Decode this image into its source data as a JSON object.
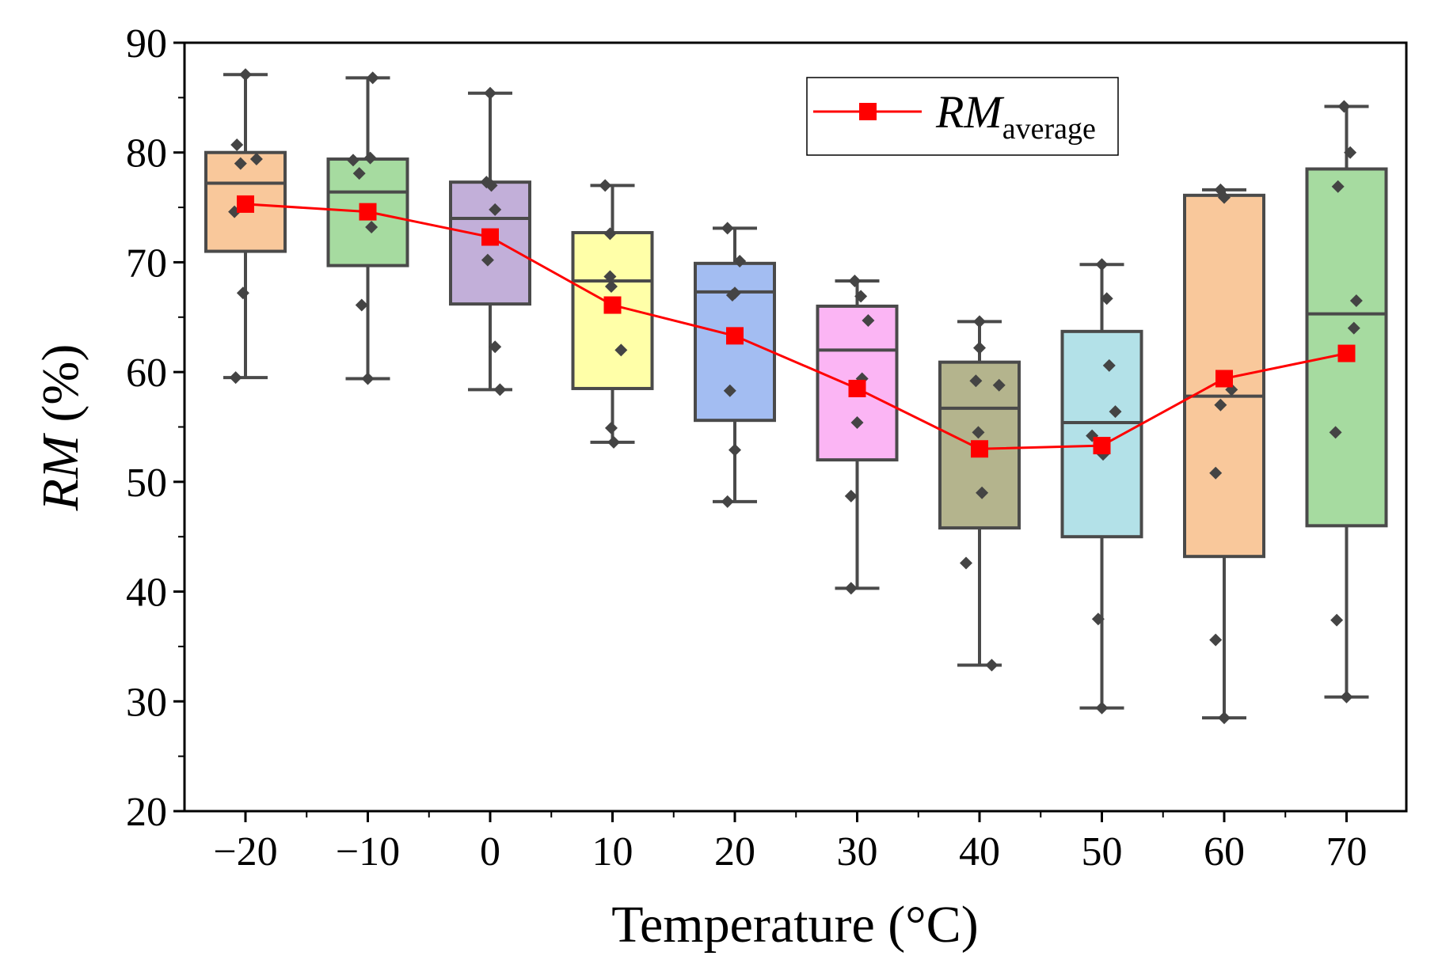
{
  "chart_data": {
    "type": "box",
    "xlabel": "Temperature (°C)",
    "ylabel_italic": "RM",
    "ylabel_suffix": " (%)",
    "ylim": [
      20,
      90
    ],
    "yticks": [
      20,
      30,
      40,
      50,
      60,
      70,
      80,
      90
    ],
    "categories": [
      "−20",
      "−10",
      "0",
      "10",
      "20",
      "30",
      "40",
      "50",
      "60",
      "70"
    ],
    "legend": {
      "symbol": "line-with-square",
      "label_italic": "RM",
      "label_subscript": "average",
      "position": "top-center"
    },
    "colors": {
      "box_fill": [
        "#F9C89B",
        "#A6DBA0",
        "#C2AFD9",
        "#FFFFA8",
        "#A3BDF2",
        "#FBB5F4",
        "#B4B48D",
        "#B3E1E8",
        "#F9C89B",
        "#A6DBA0"
      ],
      "box_stroke": "#4a4a4a",
      "points": "#444444",
      "average": "#ff0000"
    },
    "boxes": [
      {
        "q1": 71.0,
        "median": 77.2,
        "q3": 80.0,
        "whisker_low": 59.5,
        "whisker_high": 87.1
      },
      {
        "q1": 69.7,
        "median": 76.4,
        "q3": 79.4,
        "whisker_low": 59.4,
        "whisker_high": 86.8
      },
      {
        "q1": 66.2,
        "median": 74.0,
        "q3": 77.3,
        "whisker_low": 58.4,
        "whisker_high": 85.4
      },
      {
        "q1": 58.5,
        "median": 68.3,
        "q3": 72.7,
        "whisker_low": 53.6,
        "whisker_high": 77.0
      },
      {
        "q1": 55.6,
        "median": 67.3,
        "q3": 69.9,
        "whisker_low": 48.2,
        "whisker_high": 73.1
      },
      {
        "q1": 52.0,
        "median": 62.0,
        "q3": 66.0,
        "whisker_low": 40.3,
        "whisker_high": 68.3
      },
      {
        "q1": 45.8,
        "median": 56.7,
        "q3": 60.9,
        "whisker_low": 33.3,
        "whisker_high": 64.6
      },
      {
        "q1": 45.0,
        "median": 55.4,
        "q3": 63.7,
        "whisker_low": 29.4,
        "whisker_high": 69.8
      },
      {
        "q1": 43.2,
        "median": 57.8,
        "q3": 76.1,
        "whisker_low": 28.5,
        "whisker_high": 76.6
      },
      {
        "q1": 46.0,
        "median": 65.3,
        "q3": 78.5,
        "whisker_low": 30.4,
        "whisker_high": 84.2
      }
    ],
    "points": [
      [
        {
          "dx": 0.0,
          "y": 87.1
        },
        {
          "dx": -0.07,
          "y": 80.7
        },
        {
          "dx": -0.04,
          "y": 79.0
        },
        {
          "dx": 0.09,
          "y": 79.4
        },
        {
          "dx": -0.09,
          "y": 74.6
        },
        {
          "dx": -0.02,
          "y": 67.2
        },
        {
          "dx": -0.08,
          "y": 59.5
        }
      ],
      [
        {
          "dx": 0.04,
          "y": 86.8
        },
        {
          "dx": -0.12,
          "y": 79.3
        },
        {
          "dx": 0.02,
          "y": 79.5
        },
        {
          "dx": -0.07,
          "y": 78.1
        },
        {
          "dx": 0.03,
          "y": 73.2
        },
        {
          "dx": -0.05,
          "y": 66.1
        },
        {
          "dx": 0.0,
          "y": 59.4
        }
      ],
      [
        {
          "dx": 0.0,
          "y": 85.4
        },
        {
          "dx": -0.03,
          "y": 77.3
        },
        {
          "dx": 0.01,
          "y": 77.0
        },
        {
          "dx": 0.04,
          "y": 74.8
        },
        {
          "dx": -0.02,
          "y": 70.2
        },
        {
          "dx": 0.04,
          "y": 62.3
        },
        {
          "dx": 0.08,
          "y": 58.4
        }
      ],
      [
        {
          "dx": -0.06,
          "y": 77.0
        },
        {
          "dx": -0.02,
          "y": 72.6
        },
        {
          "dx": -0.02,
          "y": 68.7
        },
        {
          "dx": -0.01,
          "y": 67.8
        },
        {
          "dx": 0.07,
          "y": 62.0
        },
        {
          "dx": -0.01,
          "y": 54.9
        },
        {
          "dx": 0.01,
          "y": 53.6
        }
      ],
      [
        {
          "dx": -0.06,
          "y": 73.1
        },
        {
          "dx": 0.04,
          "y": 70.1
        },
        {
          "dx": 0.0,
          "y": 67.2
        },
        {
          "dx": -0.02,
          "y": 67.0
        },
        {
          "dx": -0.04,
          "y": 58.3
        },
        {
          "dx": 0.0,
          "y": 52.9
        },
        {
          "dx": -0.06,
          "y": 48.2
        }
      ],
      [
        {
          "dx": -0.02,
          "y": 68.3
        },
        {
          "dx": 0.03,
          "y": 66.9
        },
        {
          "dx": 0.09,
          "y": 64.7
        },
        {
          "dx": 0.04,
          "y": 59.4
        },
        {
          "dx": 0.0,
          "y": 55.4
        },
        {
          "dx": -0.05,
          "y": 48.7
        },
        {
          "dx": -0.05,
          "y": 40.3
        }
      ],
      [
        {
          "dx": 0.0,
          "y": 64.6
        },
        {
          "dx": 0.0,
          "y": 62.2
        },
        {
          "dx": -0.03,
          "y": 59.2
        },
        {
          "dx": 0.16,
          "y": 58.8
        },
        {
          "dx": -0.01,
          "y": 54.5
        },
        {
          "dx": 0.02,
          "y": 49.0
        },
        {
          "dx": -0.11,
          "y": 42.6
        },
        {
          "dx": 0.1,
          "y": 33.3
        }
      ],
      [
        {
          "dx": 0.0,
          "y": 69.8
        },
        {
          "dx": 0.04,
          "y": 66.7
        },
        {
          "dx": 0.06,
          "y": 60.6
        },
        {
          "dx": 0.11,
          "y": 56.4
        },
        {
          "dx": -0.08,
          "y": 54.2
        },
        {
          "dx": 0.01,
          "y": 52.5
        },
        {
          "dx": -0.03,
          "y": 37.5
        },
        {
          "dx": 0.0,
          "y": 29.4
        }
      ],
      [
        {
          "dx": -0.03,
          "y": 76.6
        },
        {
          "dx": 0.0,
          "y": 75.9
        },
        {
          "dx": 0.06,
          "y": 58.4
        },
        {
          "dx": -0.03,
          "y": 57.0
        },
        {
          "dx": -0.07,
          "y": 50.8
        },
        {
          "dx": -0.07,
          "y": 35.6
        },
        {
          "dx": 0.0,
          "y": 28.5
        }
      ],
      [
        {
          "dx": -0.02,
          "y": 84.2
        },
        {
          "dx": 0.03,
          "y": 80.0
        },
        {
          "dx": -0.07,
          "y": 76.9
        },
        {
          "dx": 0.08,
          "y": 66.5
        },
        {
          "dx": 0.06,
          "y": 64.0
        },
        {
          "dx": -0.09,
          "y": 54.5
        },
        {
          "dx": -0.08,
          "y": 37.4
        },
        {
          "dx": 0.0,
          "y": 30.4
        }
      ]
    ],
    "average": [
      75.3,
      74.6,
      72.3,
      66.1,
      63.3,
      58.5,
      53.0,
      53.3,
      59.4,
      61.7
    ]
  }
}
